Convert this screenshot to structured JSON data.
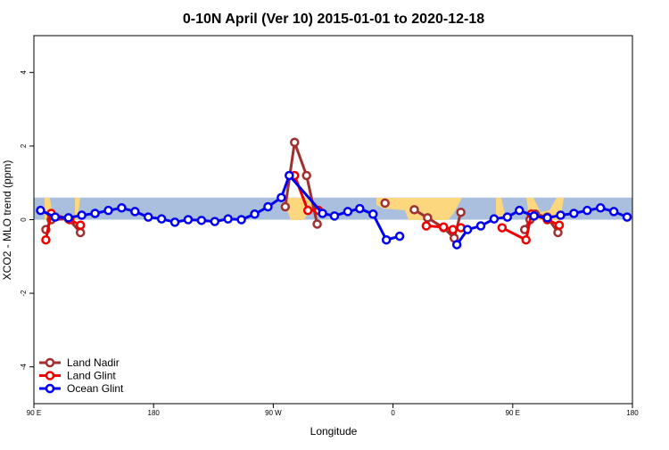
{
  "chart_data": {
    "type": "line",
    "title": "0-10N April (Ver 10)   2015-01-01 to 2020-12-18",
    "x_label": "Longitude",
    "y_label": "XCO2 - MLO trend (ppm)",
    "xlim": [
      90,
      540
    ],
    "xticks": [
      {
        "value": 90,
        "label": "90 E"
      },
      {
        "value": 180,
        "label": "180"
      },
      {
        "value": 270,
        "label": "90 W"
      },
      {
        "value": 360,
        "label": "0"
      },
      {
        "value": 450,
        "label": "90 E"
      },
      {
        "value": 540,
        "label": "180"
      }
    ],
    "ylim": [
      -5,
      5
    ],
    "yticks": [
      -4,
      -2,
      0,
      2,
      4
    ],
    "band_range": [
      0,
      0.6
    ],
    "band_color": "#a9bfdd",
    "land_color": "#fcd77e",
    "legend": "bottom-left",
    "series": [
      {
        "name": "Land Nadir",
        "color": "#a03030",
        "x": [
          99,
          103,
          116,
          125,
          null,
          279,
          286,
          295,
          303,
          null,
          354,
          null,
          376,
          386,
          398,
          406,
          411,
          null,
          459,
          463,
          467,
          476,
          484
        ],
        "values": [
          -0.27,
          0,
          0.02,
          -0.35,
          null,
          0.35,
          2.1,
          1.2,
          -0.12,
          null,
          0.45,
          null,
          0.27,
          0.05,
          -0.22,
          -0.5,
          0.2,
          null,
          -0.27,
          0,
          0.15,
          0.07,
          -0.35
        ]
      },
      {
        "name": "Land Glint",
        "color": "#ee0000",
        "x": [
          99,
          103,
          117,
          125,
          null,
          286,
          296,
          304,
          null,
          385,
          398,
          405,
          411,
          null,
          442,
          460,
          464,
          476,
          485
        ],
        "values": [
          -0.55,
          0.17,
          0.0,
          -0.15,
          null,
          1.2,
          0.25,
          0.25,
          null,
          -0.17,
          -0.2,
          -0.27,
          -0.22,
          null,
          -0.22,
          -0.55,
          0.15,
          0.0,
          -0.15
        ]
      },
      {
        "name": "Ocean Glint",
        "color": "#0000ee",
        "x": [
          95,
          106,
          116,
          126,
          136,
          146,
          156,
          166,
          176,
          186,
          196,
          206,
          216,
          226,
          236,
          246,
          256,
          266,
          276,
          282,
          307,
          316,
          326,
          335,
          345,
          355,
          365,
          null,
          408,
          416,
          426,
          436,
          446,
          455,
          466,
          476,
          486,
          496,
          506,
          516,
          526,
          536
        ],
        "values": [
          0.25,
          0.07,
          0.05,
          0.12,
          0.17,
          0.25,
          0.32,
          0.22,
          0.07,
          0.02,
          -0.07,
          0,
          -0.02,
          -0.05,
          0.02,
          0,
          0.15,
          0.35,
          0.6,
          1.2,
          0.17,
          0.1,
          0.22,
          0.3,
          0.15,
          -0.55,
          -0.45,
          null,
          -0.68,
          -0.27,
          -0.17,
          0.02,
          0.07,
          0.25,
          0.1,
          0.05,
          0.12,
          0.17,
          0.25,
          0.32,
          0.22,
          0.07
        ]
      }
    ]
  }
}
